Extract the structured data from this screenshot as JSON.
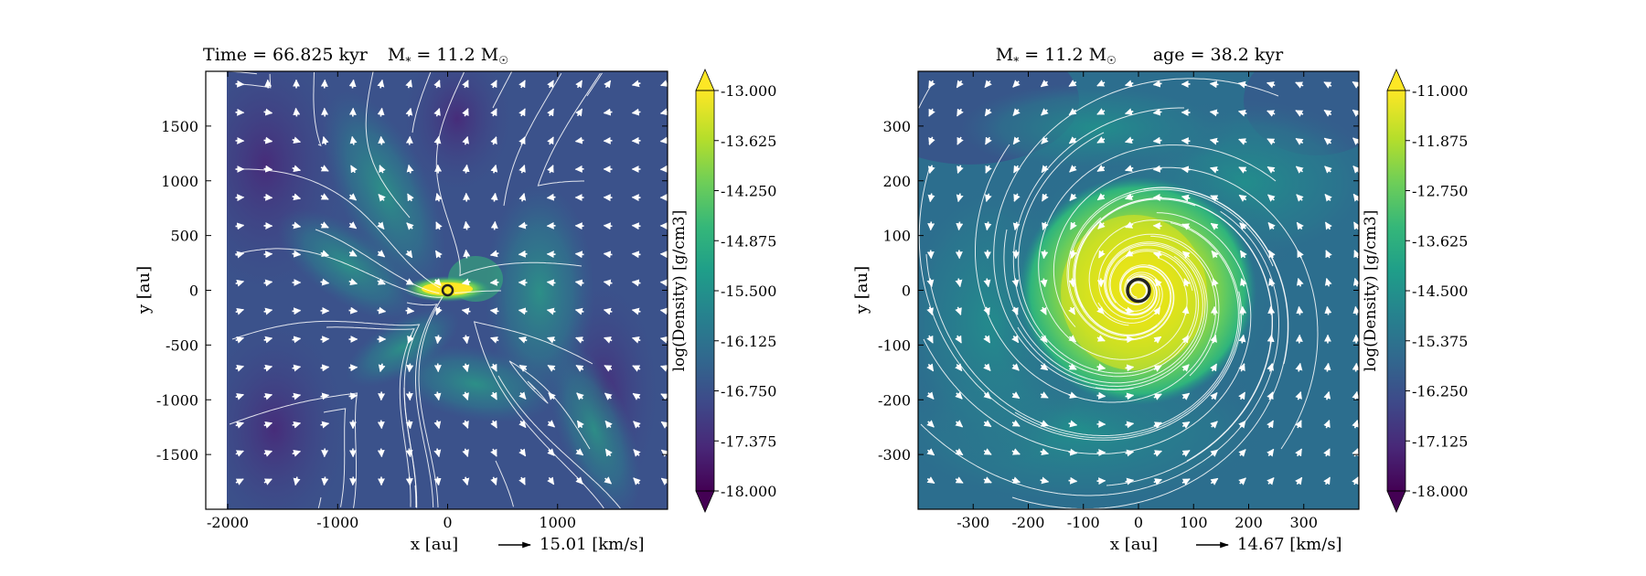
{
  "chart_data": [
    {
      "type": "heatmap",
      "title": "Time = 66.825 kyr    M* = 11.2 M☉",
      "title_parts": {
        "time": "Time = 66.825 kyr",
        "mass_prefix": "M",
        "mass_sub": "*",
        "mass_value": " = 11.2 M",
        "sun": "☉"
      },
      "xlabel": "x [au]",
      "ylabel": "y [au]",
      "xlim": [
        -2200,
        2000
      ],
      "ylim": [
        -2000,
        2000
      ],
      "data_x_start": -2000,
      "x_ticks": [
        -2000,
        -1000,
        0,
        1000
      ],
      "y_ticks": [
        -1500,
        -1000,
        -500,
        0,
        500,
        1000,
        1500
      ],
      "x_tick_labels": [
        "-2000",
        "-1000",
        "0",
        "1000"
      ],
      "y_tick_labels": [
        "-1500",
        "-1000",
        "-500",
        "0",
        "500",
        "1000",
        "1500"
      ],
      "colorbar": {
        "label": "log(Density) [g/cm3]",
        "range": [
          -18.0,
          -13.0
        ],
        "ticks": [
          "-13.000",
          "-13.625",
          "-14.250",
          "-14.875",
          "-15.500",
          "-16.125",
          "-16.750",
          "-17.375",
          "-18.000"
        ],
        "colormap": "viridis"
      },
      "velocity_key": {
        "label": "15.01 [km/s]",
        "value": 15.01
      },
      "sink": {
        "x": 0,
        "y": 0
      },
      "structure": "bipolar outflow with dense equatorial disk"
    },
    {
      "type": "heatmap",
      "title": "M* = 11.2 M☉        age = 38.2 kyr",
      "title_parts": {
        "mass_prefix": "M",
        "mass_sub": "*",
        "mass_value": " = 11.2 M",
        "sun": "☉",
        "age": "age = 38.2 kyr"
      },
      "xlabel": "x [au]",
      "ylabel": "y [au]",
      "xlim": [
        -400,
        400
      ],
      "ylim": [
        -400,
        400
      ],
      "x_ticks": [
        -300,
        -200,
        -100,
        0,
        100,
        200,
        300
      ],
      "y_ticks": [
        -300,
        -200,
        -100,
        0,
        100,
        200,
        300
      ],
      "x_tick_labels": [
        "-300",
        "-200",
        "-100",
        "0",
        "100",
        "200",
        "300"
      ],
      "y_tick_labels": [
        "-300",
        "-200",
        "-100",
        "0",
        "100",
        "200",
        "300"
      ],
      "colorbar": {
        "label": "log(Density) [g/cm3]",
        "range": [
          -18.0,
          -11.0
        ],
        "ticks": [
          "-11.000",
          "-11.875",
          "-12.750",
          "-13.625",
          "-14.500",
          "-15.375",
          "-16.250",
          "-17.125",
          "-18.000"
        ],
        "colormap": "viridis"
      },
      "velocity_key": {
        "label": "14.67 [km/s]",
        "value": 14.67
      },
      "sink": {
        "x": 0,
        "y": 0
      },
      "structure": "rotating disk with spiral inflow"
    }
  ],
  "colors": {
    "viridis": [
      "#440154",
      "#482878",
      "#3e4989",
      "#31688e",
      "#26828e",
      "#1f9e89",
      "#35b779",
      "#6ece58",
      "#b5de2b",
      "#fde725"
    ],
    "stream": "#ffffff",
    "sink": "#222222"
  }
}
